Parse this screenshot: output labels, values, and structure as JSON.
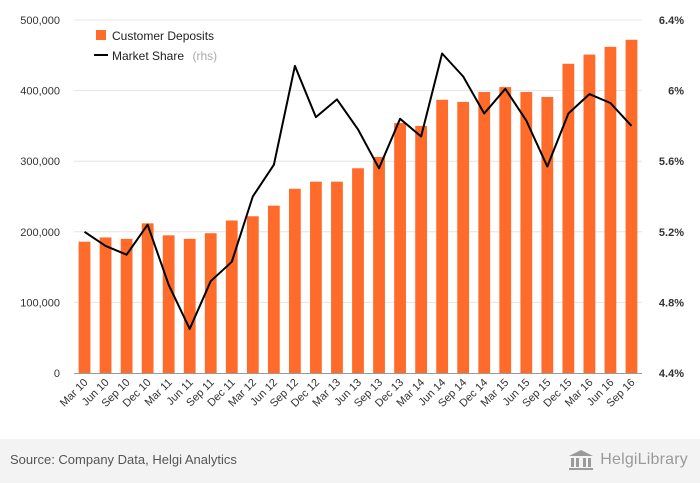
{
  "chart_data": {
    "type": "bar",
    "categories": [
      "Mar 10",
      "Jun 10",
      "Sep 10",
      "Dec 10",
      "Mar 11",
      "Jun 11",
      "Sep 11",
      "Dec 11",
      "Mar 12",
      "Jun 12",
      "Sep 12",
      "Dec 12",
      "Mar 13",
      "Jun 13",
      "Sep 13",
      "Dec 13",
      "Mar 14",
      "Jun 14",
      "Sep 14",
      "Dec 14",
      "Mar 15",
      "Jun 15",
      "Sep 15",
      "Dec 15",
      "Mar 16",
      "Jun 16",
      "Sep 16"
    ],
    "series": [
      {
        "name": "Customer Deposits",
        "type": "bar",
        "axis": "left",
        "color": "#ff6b2b",
        "values": [
          186000,
          192000,
          190000,
          212000,
          195000,
          190000,
          198000,
          216000,
          222000,
          237000,
          261000,
          271000,
          271000,
          290000,
          306000,
          354000,
          350000,
          387000,
          384000,
          398000,
          405000,
          398000,
          391000,
          438000,
          451000,
          462000,
          472000
        ]
      },
      {
        "name": "Market Share",
        "legend_suffix": "(rhs)",
        "type": "line",
        "axis": "right",
        "color": "#000000",
        "values": [
          5.2,
          5.12,
          5.07,
          5.24,
          4.9,
          4.65,
          4.92,
          5.03,
          5.4,
          5.58,
          6.14,
          5.85,
          5.95,
          5.78,
          5.56,
          5.84,
          5.74,
          6.21,
          6.08,
          5.87,
          6.01,
          5.83,
          5.57,
          5.87,
          5.98,
          5.93,
          5.8
        ]
      }
    ],
    "y_left": {
      "lim": [
        0,
        500000
      ],
      "ticks": [
        0,
        100000,
        200000,
        300000,
        400000,
        500000
      ],
      "tick_labels": [
        "0",
        "100,000",
        "200,000",
        "300,000",
        "400,000",
        "500,000"
      ]
    },
    "y_right": {
      "lim": [
        4.4,
        6.4
      ],
      "ticks": [
        4.4,
        4.8,
        5.2,
        5.6,
        6.0,
        6.4
      ],
      "tick_labels": [
        "4.4%",
        "4.8%",
        "5.2%",
        "5.6%",
        "6%",
        "6.4%"
      ]
    },
    "legend_position": "top-left",
    "grid": true
  },
  "footer": {
    "source": "Source: Company Data, Helgi Analytics",
    "brand_name": "HelgiLibrary",
    "logo_icon": "library-columns-icon"
  }
}
